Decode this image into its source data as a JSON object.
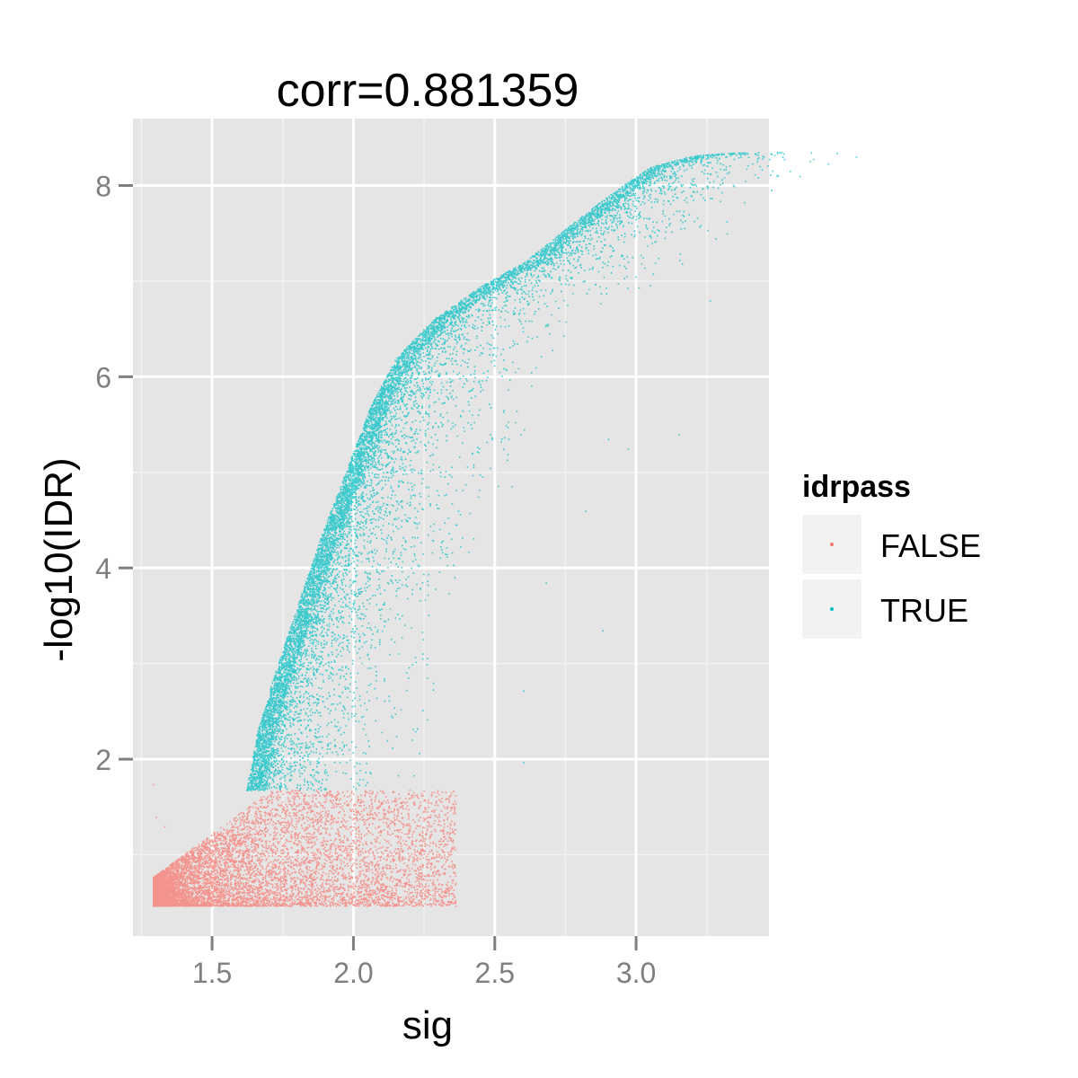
{
  "chart_data": {
    "type": "scatter",
    "title": "corr=0.881359",
    "xlabel": "sig",
    "ylabel": "-log10(IDR)",
    "xlim": [
      1.22,
      3.47
    ],
    "ylim": [
      0.15,
      8.7
    ],
    "x_ticks": [
      1.5,
      2.0,
      2.5,
      3.0
    ],
    "x_tick_labels": [
      "1.5",
      "2.0",
      "2.5",
      "3.0"
    ],
    "y_ticks": [
      2,
      4,
      6,
      8
    ],
    "y_tick_labels": [
      "2",
      "4",
      "6",
      "8"
    ],
    "grid": true,
    "legend": {
      "title": "idrpass",
      "position": "right",
      "entries": [
        {
          "label": "FALSE",
          "color": "#F8766D"
        },
        {
          "label": "TRUE",
          "color": "#00BFC4"
        }
      ]
    },
    "threshold_y": 1.68,
    "series": [
      {
        "name": "FALSE",
        "color": "#F8766D",
        "region": {
          "x_min": 1.29,
          "x_max": 2.36,
          "y_min": 0.47,
          "y_max": 1.68
        },
        "outliers": [
          [
            1.29,
            1.74
          ],
          [
            1.3,
            1.4
          ],
          [
            1.33,
            1.3
          ],
          [
            2.26,
            1.35
          ],
          [
            2.3,
            1.15
          ],
          [
            2.35,
            1.25
          ],
          [
            2.35,
            0.5
          ]
        ]
      },
      {
        "name": "TRUE",
        "color": "#00BFC4",
        "frontier": [
          [
            1.62,
            1.68
          ],
          [
            1.66,
            2.3
          ],
          [
            1.72,
            2.9
          ],
          [
            1.8,
            3.6
          ],
          [
            1.88,
            4.3
          ],
          [
            1.97,
            5.0
          ],
          [
            2.06,
            5.7
          ],
          [
            2.15,
            6.2
          ],
          [
            2.28,
            6.6
          ],
          [
            2.45,
            6.95
          ],
          [
            2.6,
            7.2
          ],
          [
            2.75,
            7.55
          ],
          [
            2.9,
            7.9
          ],
          [
            3.05,
            8.2
          ],
          [
            3.2,
            8.32
          ],
          [
            3.36,
            8.35
          ]
        ],
        "outliers": [
          [
            3.28,
            7.45
          ],
          [
            3.26,
            6.8
          ],
          [
            3.15,
            5.4
          ],
          [
            2.97,
            5.25
          ],
          [
            2.82,
            4.6
          ],
          [
            2.88,
            3.35
          ],
          [
            2.6,
            2.72
          ],
          [
            2.6,
            1.97
          ],
          [
            3.32,
            7.5
          ],
          [
            2.68,
            3.85
          ],
          [
            2.9,
            5.35
          ]
        ]
      }
    ]
  }
}
